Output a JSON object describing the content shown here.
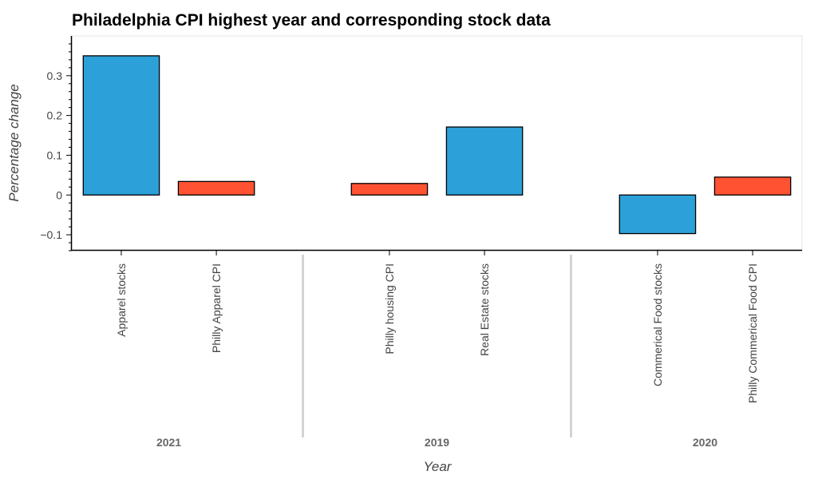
{
  "chart_data": {
    "type": "bar",
    "title": "Philadelphia CPI highest year and corresponding stock data",
    "xlabel": "Year",
    "ylabel": "Percentage change",
    "ylim": [
      -0.14,
      0.4
    ],
    "yticks": [
      -0.1,
      0,
      0.1,
      0.2,
      0.3
    ],
    "ytick_labels": [
      "−0.1",
      "0",
      "0.1",
      "0.2",
      "0.3"
    ],
    "grid": false,
    "colors": {
      "stocks": "#2ca1d9",
      "cpi": "#ff5233",
      "bar_outline": "#000000",
      "separator": "#d3d3d3",
      "axis": "#000000"
    },
    "groups": [
      {
        "label": "2021",
        "bars": [
          {
            "category": "Apparel stocks",
            "value": 0.35,
            "kind": "stocks"
          },
          {
            "category": "Philly Apparel CPI",
            "value": 0.034,
            "kind": "cpi"
          }
        ]
      },
      {
        "label": "2019",
        "bars": [
          {
            "category": "Philly housing CPI",
            "value": 0.029,
            "kind": "cpi"
          },
          {
            "category": "Real Estate stocks",
            "value": 0.171,
            "kind": "stocks"
          }
        ]
      },
      {
        "label": "2020",
        "bars": [
          {
            "category": "Commerical Food stocks",
            "value": -0.097,
            "kind": "stocks"
          },
          {
            "category": "Philly Commerical Food CPI",
            "value": 0.045,
            "kind": "cpi"
          }
        ]
      }
    ]
  }
}
